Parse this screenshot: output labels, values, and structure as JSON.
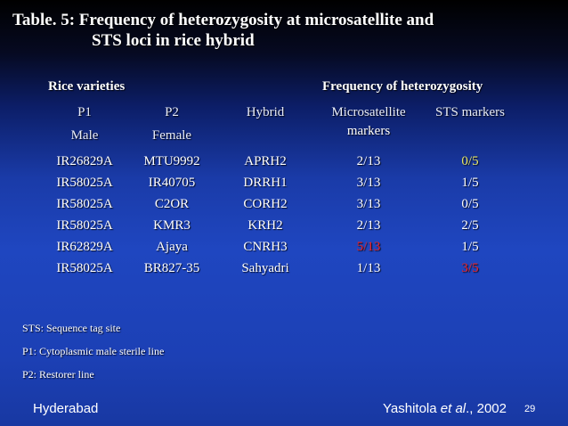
{
  "title": {
    "line1": "Table. 5: Frequency of heterozygosity at microsatellite and",
    "line2": "STS loci in rice hybrid"
  },
  "section_headers": {
    "rice_varieties": "Rice varieties",
    "frequency": "Frequency of heterozygosity"
  },
  "columns": {
    "p1": "P1",
    "p1_sub": "Male",
    "p2": "P2",
    "p2_sub": "Female",
    "hybrid": "Hybrid",
    "microsatellite": "Microsatellite",
    "microsatellite_sub": "markers",
    "sts": "STS markers"
  },
  "rows": [
    {
      "p1": "IR26829A",
      "p2": "MTU9992",
      "hybrid": "APRH2",
      "micro": "2/13",
      "sts": "0/5",
      "micro_color": "#ffffff",
      "sts_color": "#e8e86a"
    },
    {
      "p1": "IR58025A",
      "p2": "IR40705",
      "hybrid": "DRRH1",
      "micro": "3/13",
      "sts": "1/5",
      "micro_color": "#ffffff",
      "sts_color": "#ffffff"
    },
    {
      "p1": "IR58025A",
      "p2": "C2OR",
      "hybrid": "CORH2",
      "micro": "3/13",
      "sts": "0/5",
      "micro_color": "#ffffff",
      "sts_color": "#ffffff"
    },
    {
      "p1": "IR58025A",
      "p2": "KMR3",
      "hybrid": "KRH2",
      "micro": "2/13",
      "sts": "2/5",
      "micro_color": "#ffffff",
      "sts_color": "#ffffff"
    },
    {
      "p1": "IR62829A",
      "p2": "Ajaya",
      "hybrid": "CNRH3",
      "micro": "5/13",
      "sts": "1/5",
      "micro_color": "#ee2222",
      "sts_color": "#ffffff"
    },
    {
      "p1": "IR58025A",
      "p2": "BR827-35",
      "hybrid": "Sahyadri",
      "micro": "1/13",
      "sts": "3/5",
      "micro_color": "#ffffff",
      "sts_color": "#ee2222"
    }
  ],
  "notes": [
    "STS: Sequence tag site",
    "P1: Cytoplasmic male sterile line",
    "P2: Restorer line"
  ],
  "footer": {
    "location": "Hyderabad",
    "citation_author": "Yashitola ",
    "citation_etal": "et al",
    "citation_year": "., 2002",
    "page_number": "29"
  }
}
